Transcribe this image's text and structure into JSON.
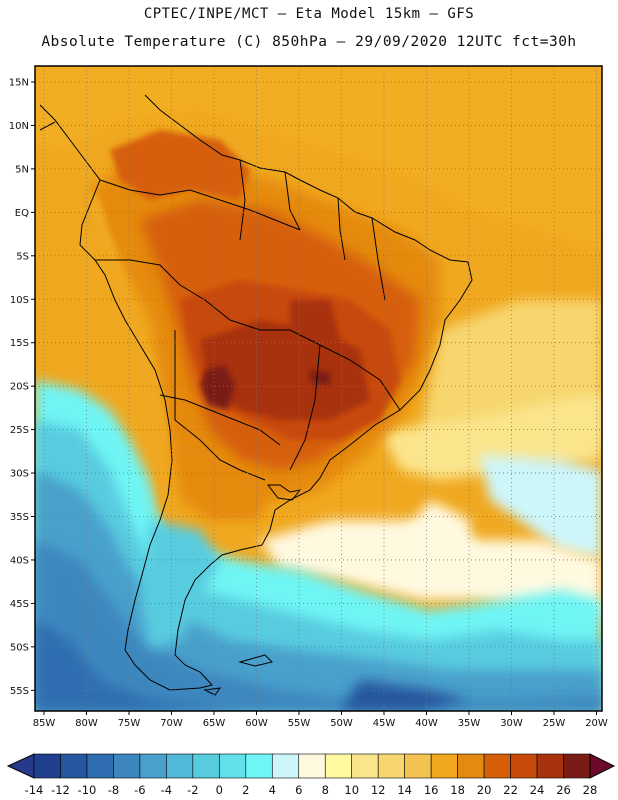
{
  "header": {
    "line1": "CPTEC/INPE/MCT —  Eta Model 15km — GFS",
    "line2": "Absolute Temperature (C) 850hPa — 29/09/2020 12UTC fct=30h"
  },
  "map": {
    "lat_labels": [
      "15N",
      "10N",
      "5N",
      "EQ",
      "5S",
      "10S",
      "15S",
      "20S",
      "25S",
      "30S",
      "35S",
      "40S",
      "45S",
      "50S",
      "55S"
    ],
    "lon_labels": [
      "85W",
      "80W",
      "75W",
      "70W",
      "65W",
      "60W",
      "55W",
      "50W",
      "45W",
      "40W",
      "35W",
      "30W",
      "25W",
      "20W"
    ]
  },
  "colorbar": {
    "labels": [
      "-14",
      "-12",
      "-10",
      "-8",
      "-6",
      "-4",
      "-2",
      "0",
      "2",
      "4",
      "6",
      "8",
      "10",
      "12",
      "14",
      "16",
      "18",
      "20",
      "22",
      "24",
      "26",
      "28"
    ],
    "colors": [
      "#1f3f8f",
      "#25569e",
      "#2f6eb0",
      "#3d87bf",
      "#4aa0cc",
      "#50b8d8",
      "#58ccdf",
      "#62e0ea",
      "#6ff5f5",
      "#cdf6fb",
      "#fff9e0",
      "#fff9a0",
      "#fbe58c",
      "#f7d66e",
      "#f4c24e",
      "#f0a820",
      "#e58a10",
      "#d65e08",
      "#c84a08",
      "#a8320e",
      "#7a1c16"
    ],
    "under_color": "#273a8a",
    "over_color": "#6b0a2a"
  }
}
